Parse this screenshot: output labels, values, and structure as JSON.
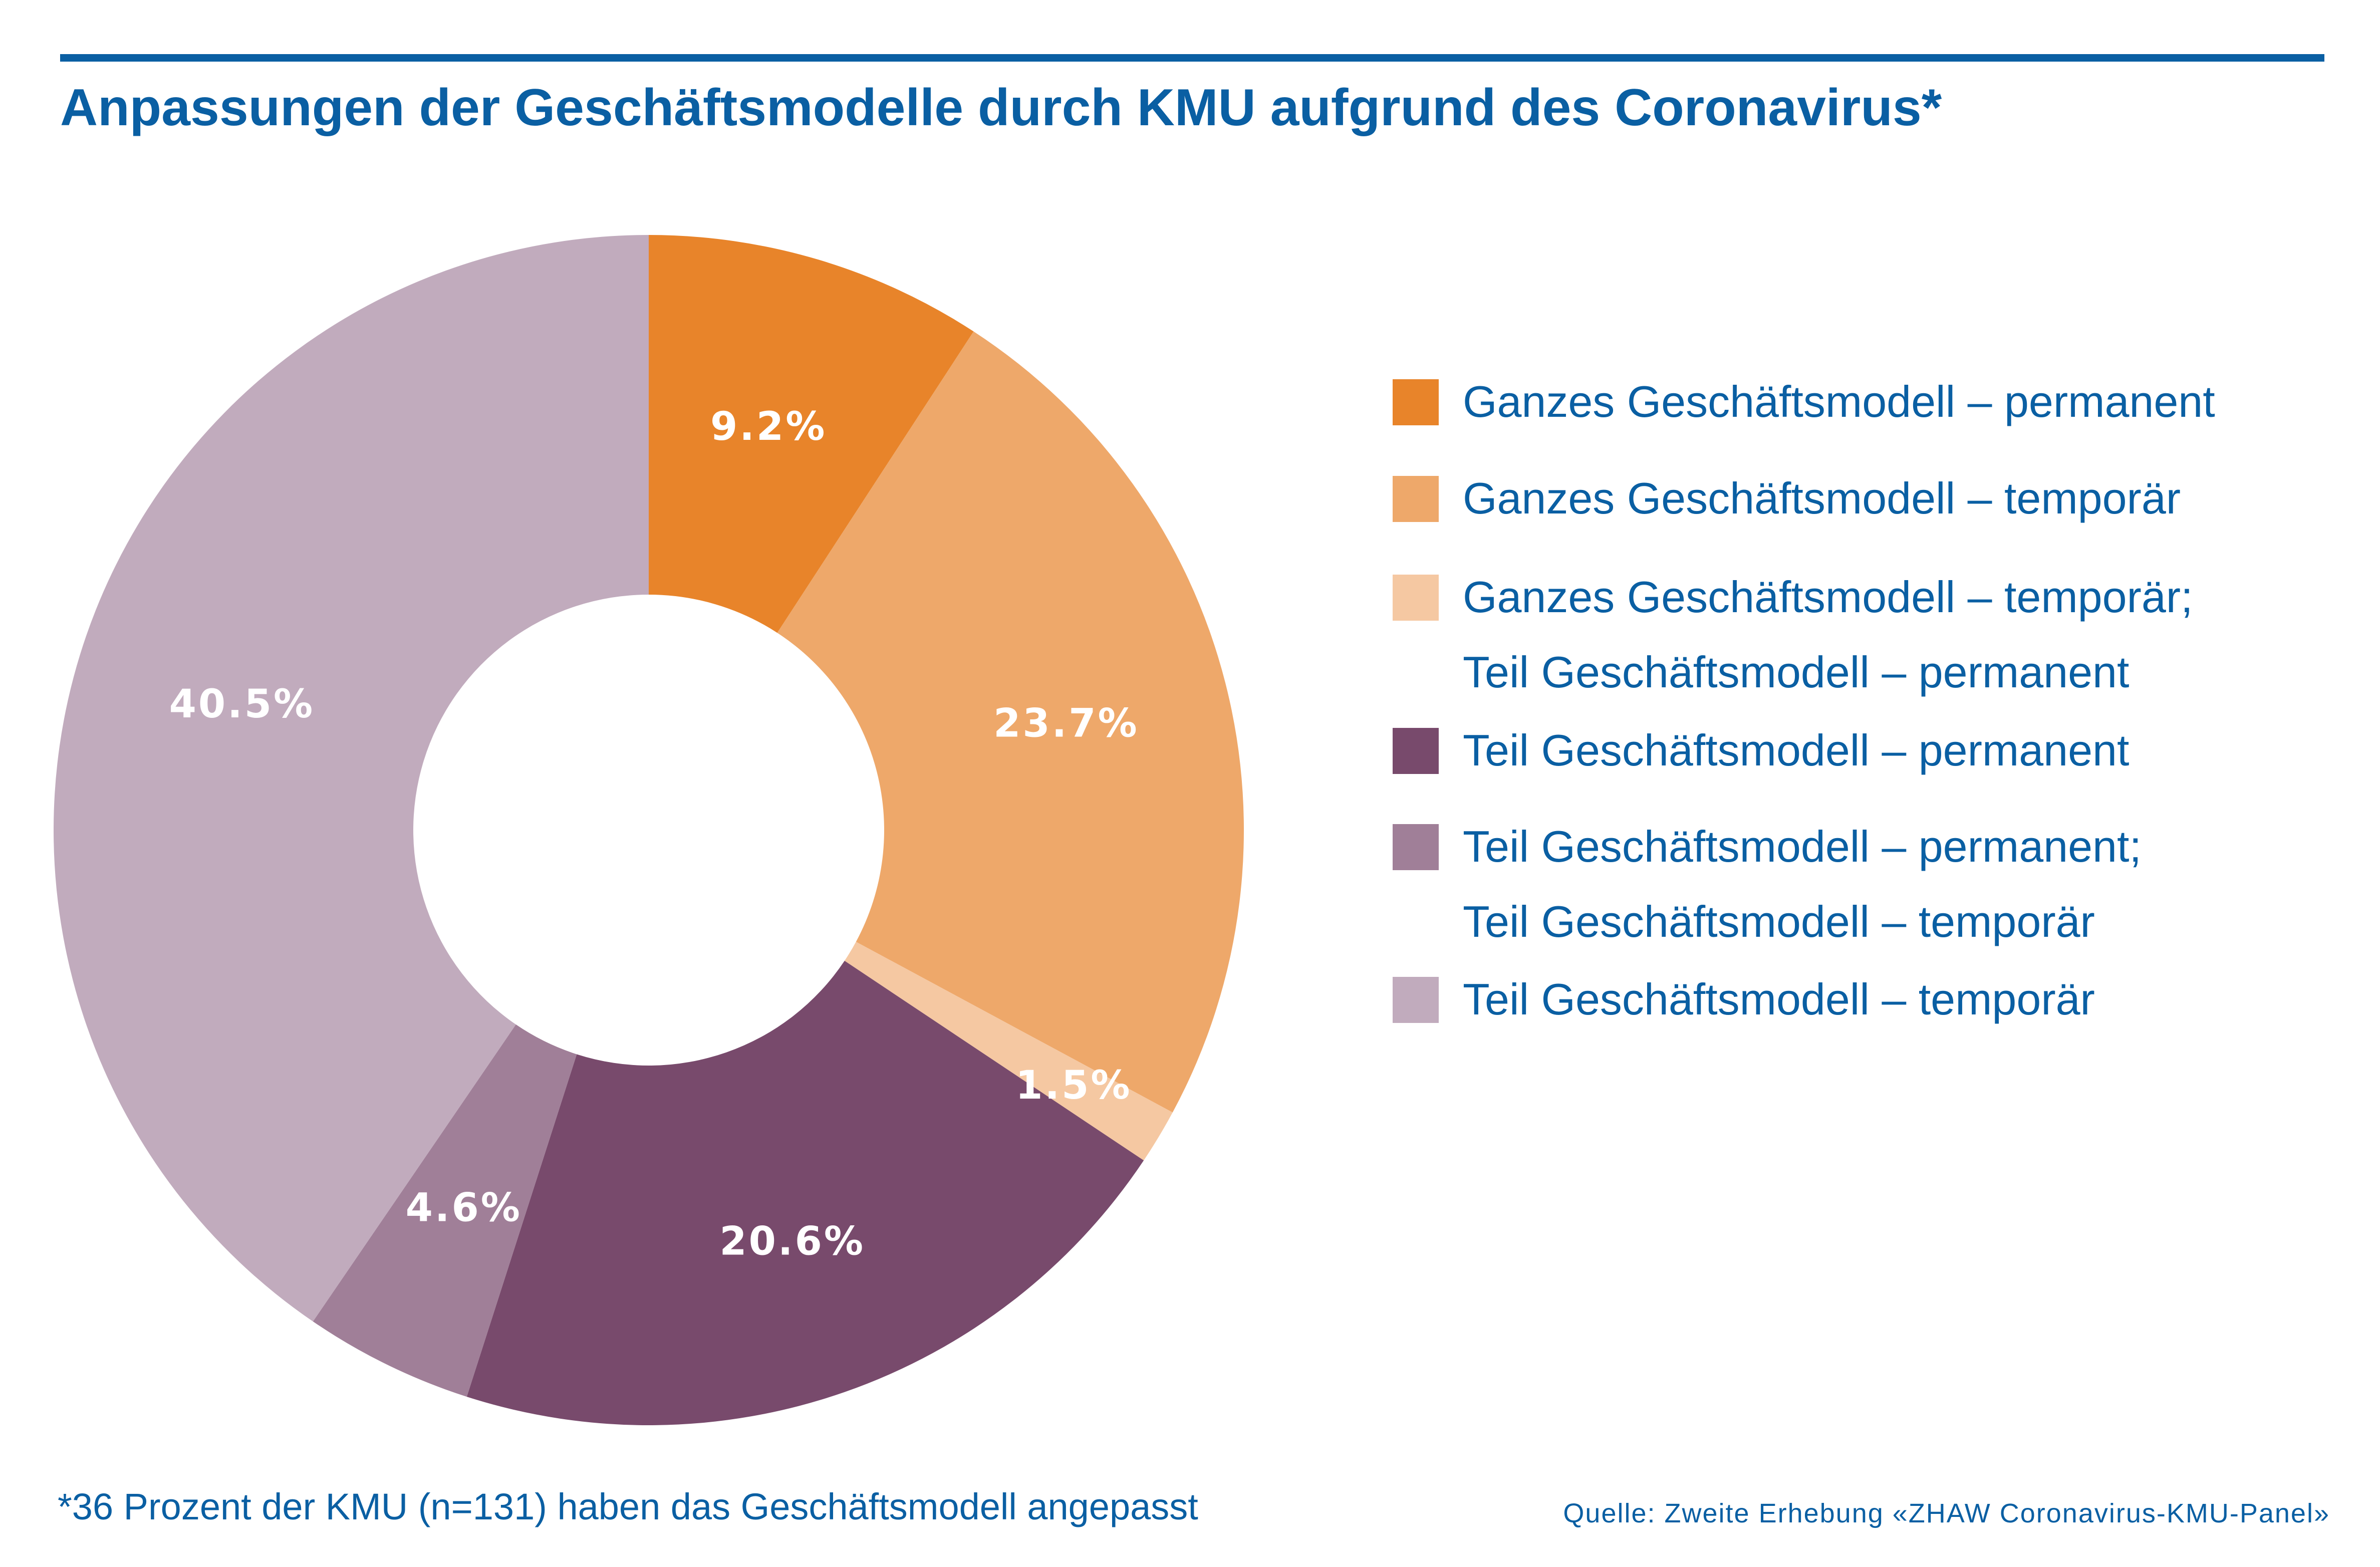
{
  "title": "Anpassungen der Geschäftsmodelle durch KMU aufgrund des Coronavirus*",
  "footnote": "*36 Prozent der KMU (n=131) haben das Geschäftsmodell angepasst",
  "source": "Quelle: Zweite Erhebung «ZHAW Coronavirus-KMU-Panel»",
  "chart_data": {
    "type": "pie",
    "donut": true,
    "start": "top, clockwise",
    "legend_position": "right",
    "unit": "%",
    "categories": [
      [
        "Ganzes Geschäftsmodell – permanent"
      ],
      [
        "Ganzes Geschäftsmodell – temporär"
      ],
      [
        "Ganzes Geschäftsmodell – temporär;",
        "Teil Geschäftsmodell – permanent"
      ],
      [
        "Teil Geschäftsmodell – permanent"
      ],
      [
        "Teil Geschäftsmodell – permanent;",
        "Teil Geschäftsmodell – temporär"
      ],
      [
        "Teil Geschäftsmodell – temporär"
      ]
    ],
    "values": [
      9.2,
      23.7,
      1.5,
      20.6,
      4.6,
      40.5
    ],
    "labels": [
      "9.2%",
      "23.7%",
      "1.5%",
      "20.6%",
      "4.6%",
      "40.5%"
    ],
    "colors": [
      "#e8842a",
      "#eea86a",
      "#f5c8a2",
      "#784a6c",
      "#a07f98",
      "#c1abbd"
    ]
  }
}
